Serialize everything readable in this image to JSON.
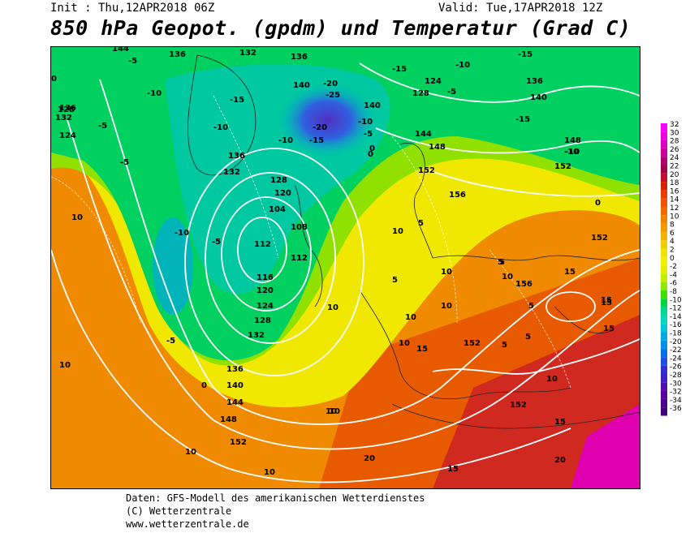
{
  "header": {
    "init": "Init : Thu,12APR2018 06Z",
    "valid": "Valid: Tue,17APR2018 12Z",
    "title": "850 hPa Geopot. (gpdm) und Temperatur (Grad C)"
  },
  "footer": {
    "line1": "Daten: GFS-Modell des amerikanischen Wetterdienstes",
    "line2": "(C) Wetterzentrale",
    "line3": "www.wetterzentrale.de"
  },
  "legend": {
    "labels": [
      "32",
      "30",
      "28",
      "26",
      "24",
      "22",
      "20",
      "18",
      "16",
      "14",
      "12",
      "10",
      "8",
      "6",
      "4",
      "2",
      "0",
      "-2",
      "-4",
      "-6",
      "-8",
      "-10",
      "-12",
      "-14",
      "-16",
      "-18",
      "-20",
      "-22",
      "-24",
      "-26",
      "-28",
      "-30",
      "-32",
      "-34",
      "-36"
    ],
    "colors": [
      "#ff00ff",
      "#f000e0",
      "#e000c0",
      "#c8009a",
      "#b00070",
      "#a0004a",
      "#c0102a",
      "#d82000",
      "#e83c00",
      "#f05400",
      "#f06c00",
      "#f08400",
      "#f09c00",
      "#f0b400",
      "#f0cc00",
      "#f0e400",
      "#f0f000",
      "#e0f000",
      "#c0f000",
      "#90e800",
      "#40e000",
      "#00d840",
      "#00d890",
      "#00d8c0",
      "#00c8d8",
      "#00a8e0",
      "#0090e8",
      "#0070e8",
      "#2050e0",
      "#3030d0",
      "#4020c0",
      "#5010b0",
      "#6000a0",
      "#500090",
      "#400080"
    ]
  },
  "map_labels": {
    "geopotential": [
      "144",
      "136",
      "132",
      "136",
      "128",
      "124",
      "136",
      "140",
      "132",
      "128",
      "124",
      "136",
      "128",
      "132",
      "120",
      "112",
      "108",
      "104",
      "112",
      "116",
      "120",
      "124",
      "128",
      "132",
      "136",
      "140",
      "144",
      "148",
      "152",
      "148",
      "152",
      "152",
      "156",
      "156",
      "152",
      "148",
      "152",
      "144",
      "140",
      "140",
      "136",
      "152"
    ],
    "temperature": [
      "-5",
      "0",
      "-10",
      "-5",
      "-10",
      "-15",
      "-20",
      "-25",
      "-20",
      "-15",
      "-10",
      "-5",
      "0",
      "-15",
      "-10",
      "-15",
      "-5",
      "-10",
      "-5",
      "-10",
      "-5",
      "-10",
      "0",
      "5",
      "10",
      "10",
      "5",
      "10",
      "15",
      "10",
      "10",
      "10",
      "15",
      "20",
      "10",
      "15",
      "20",
      "15",
      "10",
      "10",
      "15",
      "5",
      "5",
      "5",
      "10",
      "5",
      "0",
      "10",
      "10",
      "-15",
      "-10",
      "-5",
      "0",
      "5",
      "10",
      "15",
      "15",
      "10"
    ]
  }
}
